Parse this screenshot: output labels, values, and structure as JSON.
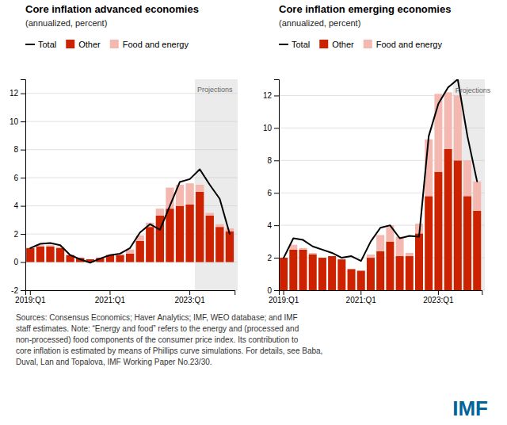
{
  "chart_data": [
    {
      "type": "bar",
      "stacked": true,
      "title": "Core inflation advanced economies",
      "subtitle": "(annualized, percent)",
      "categories": [
        "2019:Q1",
        null,
        null,
        null,
        null,
        null,
        null,
        null,
        "2021:Q1",
        null,
        null,
        null,
        null,
        null,
        null,
        null,
        "2023:Q1",
        null,
        null,
        null,
        null
      ],
      "series": [
        {
          "name": "Total",
          "type": "line",
          "color": "#000000",
          "values": [
            1.0,
            1.3,
            1.35,
            1.2,
            0.5,
            0.2,
            -0.05,
            0.25,
            0.5,
            0.6,
            1.0,
            2.1,
            2.7,
            2.3,
            4.0,
            5.7,
            5.9,
            6.6,
            5.5,
            4.5,
            2.0
          ]
        },
        {
          "name": "Other",
          "type": "bar",
          "color": "#cc2200",
          "values": [
            1.0,
            1.1,
            1.1,
            1.0,
            0.5,
            0.3,
            0.2,
            0.3,
            0.5,
            0.5,
            0.6,
            1.5,
            2.5,
            3.3,
            3.8,
            4.0,
            4.1,
            5.0,
            3.3,
            2.5,
            2.2
          ]
        },
        {
          "name": "Food and energy",
          "type": "bar",
          "color": "#f4b8b0",
          "values": [
            0.0,
            0.1,
            0.1,
            0.1,
            0.0,
            0.0,
            0.0,
            0.0,
            0.0,
            0.1,
            0.3,
            0.4,
            0.3,
            0.5,
            1.5,
            1.5,
            1.5,
            0.5,
            0.2,
            0.2,
            0.2
          ]
        }
      ],
      "ylim": [
        -2,
        13
      ],
      "yticks": [
        -2,
        0,
        2,
        4,
        6,
        8,
        10,
        12
      ],
      "grid": true,
      "legend": "top left",
      "annotations": [
        {
          "text": "Projections",
          "x": 17,
          "y": 12.5,
          "color": "#ebebeb"
        }
      ]
    },
    {
      "type": "bar",
      "stacked": true,
      "title": "Core inflation emerging economies",
      "subtitle": "(annualized, percent)",
      "categories": [
        "2019:Q1",
        null,
        null,
        null,
        null,
        null,
        null,
        null,
        "2021:Q1",
        null,
        null,
        null,
        null,
        null,
        null,
        null,
        "2023:Q1",
        null,
        null,
        null,
        null
      ],
      "series": [
        {
          "name": "Total",
          "type": "line",
          "color": "#000000",
          "values": [
            2.0,
            3.2,
            3.1,
            2.7,
            2.5,
            2.3,
            2.0,
            2.1,
            1.8,
            3.0,
            3.85,
            4.0,
            3.2,
            3.35,
            3.3,
            9.5,
            11.5,
            12.5,
            13.0,
            9.5,
            6.7
          ]
        },
        {
          "name": "Other",
          "type": "bar",
          "color": "#cc2200",
          "values": [
            2.0,
            2.5,
            2.5,
            2.2,
            2.0,
            2.1,
            1.9,
            1.3,
            1.2,
            2.0,
            2.4,
            3.0,
            2.1,
            2.1,
            3.5,
            5.8,
            7.3,
            8.7,
            8.0,
            5.8,
            4.9
          ]
        },
        {
          "name": "Food and energy",
          "type": "bar",
          "color": "#f4b8b0",
          "values": [
            0.0,
            0.3,
            0.1,
            0.1,
            0.0,
            0.0,
            0.0,
            0.0,
            0.0,
            0.2,
            1.0,
            1.0,
            1.2,
            0.2,
            0.6,
            3.5,
            4.8,
            3.5,
            4.0,
            2.2,
            1.8
          ]
        }
      ],
      "ylim": [
        0,
        13
      ],
      "yticks": [
        0,
        2,
        4,
        6,
        8,
        10,
        12
      ],
      "grid": true,
      "legend": "top left",
      "annotations": [
        {
          "text": "Projections",
          "x": 18,
          "y": 12.5,
          "color": "#ebebeb"
        }
      ]
    }
  ],
  "footnote": "Sources: Consensus Economics; Haver Analytics; IMF, WEO database; and IMF\nstaff estimates. Note: “Energy and food” refers to the energy and (processed and\nnon-processed) food components of the consumer price index. Its contribution to\ncore inflation is estimated by means of Phillips curve simulations. For details, see Baba,\nDuval, Lan and Topalova, IMF Working Paper No.23/30.",
  "logo": {
    "text": "IMF",
    "color": "#006699"
  }
}
